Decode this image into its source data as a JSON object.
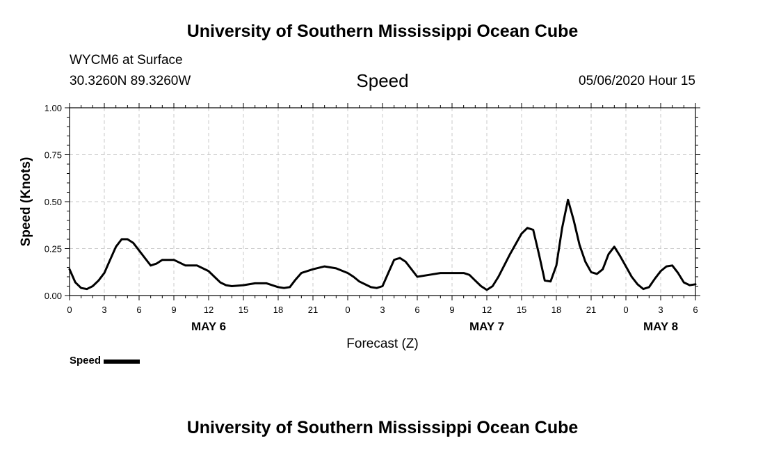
{
  "header": {
    "title": "University of Southern Mississippi Ocean Cube",
    "station": "WYCM6 at Surface",
    "coords": "30.3260N 89.3260W",
    "datetime": "05/06/2020 Hour 15"
  },
  "footer": {
    "title": "University of Southern Mississippi Ocean Cube"
  },
  "chart_data": {
    "type": "line",
    "title": "Speed",
    "xlabel": "Forecast (Z)",
    "ylabel": "Speed (Knots)",
    "xlim": [
      0,
      54
    ],
    "ylim": [
      0,
      1
    ],
    "x_ticks": [
      0,
      3,
      6,
      9,
      12,
      15,
      18,
      21,
      24,
      27,
      30,
      33,
      36,
      39,
      42,
      45,
      48,
      51,
      54
    ],
    "x_tick_labels": [
      "0",
      "3",
      "6",
      "9",
      "12",
      "15",
      "18",
      "21",
      "0",
      "3",
      "6",
      "9",
      "12",
      "15",
      "18",
      "21",
      "0",
      "3",
      "6"
    ],
    "y_ticks": [
      0,
      0.25,
      0.5,
      0.75,
      1.0
    ],
    "y_tick_labels": [
      "0.00",
      "0.25",
      "0.50",
      "0.75",
      "1.00"
    ],
    "date_labels": [
      {
        "x": 12,
        "label": "MAY 6"
      },
      {
        "x": 36,
        "label": "MAY 7"
      },
      {
        "x": 51,
        "label": "MAY 8"
      }
    ],
    "grid": true,
    "legend": "bottom-left",
    "series": [
      {
        "name": "Speed",
        "color": "#000000",
        "x": [
          0,
          0.5,
          1,
          1.5,
          2,
          2.5,
          3,
          3.5,
          4,
          4.5,
          5,
          5.5,
          6,
          6.5,
          7,
          7.5,
          8,
          9,
          10,
          11,
          12,
          12.5,
          13,
          13.5,
          14,
          15,
          16,
          17,
          18,
          18.5,
          19,
          19.5,
          20,
          21,
          22,
          23,
          24,
          24.5,
          25,
          26,
          26.5,
          27,
          27.5,
          28,
          28.5,
          29,
          30,
          31,
          32,
          33,
          34,
          34.5,
          35,
          35.5,
          36,
          36.5,
          37,
          38,
          39,
          39.5,
          40,
          40.5,
          41,
          41.5,
          42,
          42.5,
          43,
          43.5,
          44,
          44.5,
          45,
          45.5,
          46,
          46.5,
          47,
          47.5,
          48,
          48.5,
          49,
          49.5,
          50,
          50.5,
          51,
          51.5,
          52,
          52.5,
          53,
          53.5,
          54
        ],
        "values": [
          0.14,
          0.07,
          0.04,
          0.035,
          0.05,
          0.08,
          0.12,
          0.19,
          0.26,
          0.3,
          0.3,
          0.28,
          0.24,
          0.2,
          0.16,
          0.17,
          0.19,
          0.19,
          0.16,
          0.16,
          0.13,
          0.1,
          0.07,
          0.055,
          0.05,
          0.055,
          0.065,
          0.065,
          0.045,
          0.04,
          0.045,
          0.085,
          0.12,
          0.14,
          0.155,
          0.145,
          0.12,
          0.1,
          0.075,
          0.045,
          0.04,
          0.05,
          0.12,
          0.19,
          0.2,
          0.18,
          0.1,
          0.11,
          0.12,
          0.12,
          0.12,
          0.11,
          0.08,
          0.05,
          0.03,
          0.05,
          0.1,
          0.22,
          0.33,
          0.36,
          0.35,
          0.22,
          0.08,
          0.075,
          0.16,
          0.36,
          0.51,
          0.4,
          0.27,
          0.18,
          0.125,
          0.115,
          0.14,
          0.22,
          0.26,
          0.21,
          0.155,
          0.1,
          0.06,
          0.035,
          0.045,
          0.09,
          0.13,
          0.155,
          0.16,
          0.12,
          0.07,
          0.055,
          0.06
        ]
      }
    ]
  }
}
